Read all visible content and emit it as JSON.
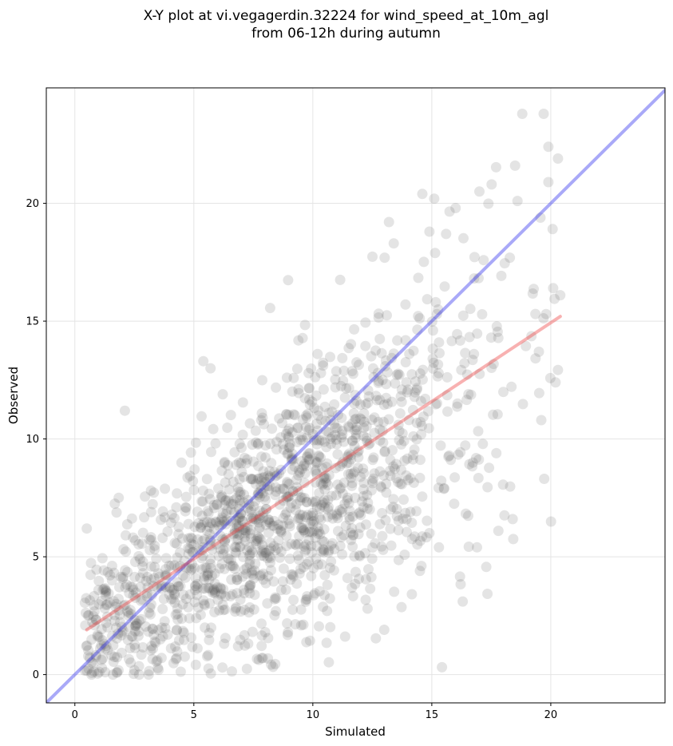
{
  "title_lines": [
    "X-Y plot at vi.vegagerdin.32224 for wind_speed_at_10m_agl",
    "from 06-12h during autumn"
  ],
  "chart_data": {
    "type": "scatter",
    "title": "X-Y plot at vi.vegagerdin.32224 for wind_speed_at_10m_agl from 06-12h during autumn",
    "xlabel": "Simulated",
    "ylabel": "Observed",
    "xlim": [
      -1.2,
      24.8
    ],
    "ylim": [
      -1.2,
      24.9
    ],
    "xticks": [
      0,
      5,
      10,
      15,
      20
    ],
    "yticks": [
      0,
      5,
      10,
      15,
      20
    ],
    "grid": true,
    "point_color": "#555555",
    "points_sample": [
      [
        0.5,
        6.2
      ],
      [
        2.1,
        11.2
      ],
      [
        5.4,
        13.3
      ],
      [
        5.7,
        13.0
      ],
      [
        16.3,
        3.1
      ],
      [
        18.8,
        23.8
      ],
      [
        19.7,
        23.8
      ],
      [
        19.9,
        22.4
      ],
      [
        20.3,
        21.9
      ],
      [
        18.5,
        21.6
      ],
      [
        18.6,
        20.1
      ],
      [
        19.9,
        20.9
      ],
      [
        17.0,
        20.5
      ],
      [
        14.6,
        20.4
      ],
      [
        15.1,
        20.2
      ],
      [
        16.0,
        19.8
      ],
      [
        14.9,
        18.8
      ],
      [
        15.6,
        18.7
      ],
      [
        13.4,
        18.3
      ],
      [
        13.0,
        1.9
      ],
      [
        14.5,
        4.4
      ],
      [
        12.3,
        2.8
      ],
      [
        10.6,
        2.7
      ],
      [
        8.0,
        1.8
      ],
      [
        7.9,
        0.7
      ],
      [
        6.2,
        0.3
      ],
      [
        2.7,
        0.0
      ],
      [
        3.1,
        0.0
      ],
      [
        1.6,
        0.0
      ],
      [
        0.7,
        0.0
      ],
      [
        20.1,
        16.4
      ],
      [
        20.4,
        16.1
      ],
      [
        19.8,
        15.3
      ],
      [
        19.6,
        10.8
      ],
      [
        20.2,
        12.4
      ],
      [
        19.5,
        13.7
      ],
      [
        18.4,
        6.6
      ],
      [
        17.8,
        6.1
      ],
      [
        16.9,
        5.4
      ],
      [
        15.3,
        5.4
      ]
    ],
    "lines": [
      {
        "kind": "identity",
        "color": "#3333ee",
        "from": [
          -1.2,
          -1.2
        ],
        "to": [
          24.8,
          24.8
        ]
      },
      {
        "kind": "regression",
        "color": "#ee4444",
        "from": [
          0.5,
          1.9
        ],
        "to": [
          20.4,
          15.2
        ]
      }
    ]
  }
}
